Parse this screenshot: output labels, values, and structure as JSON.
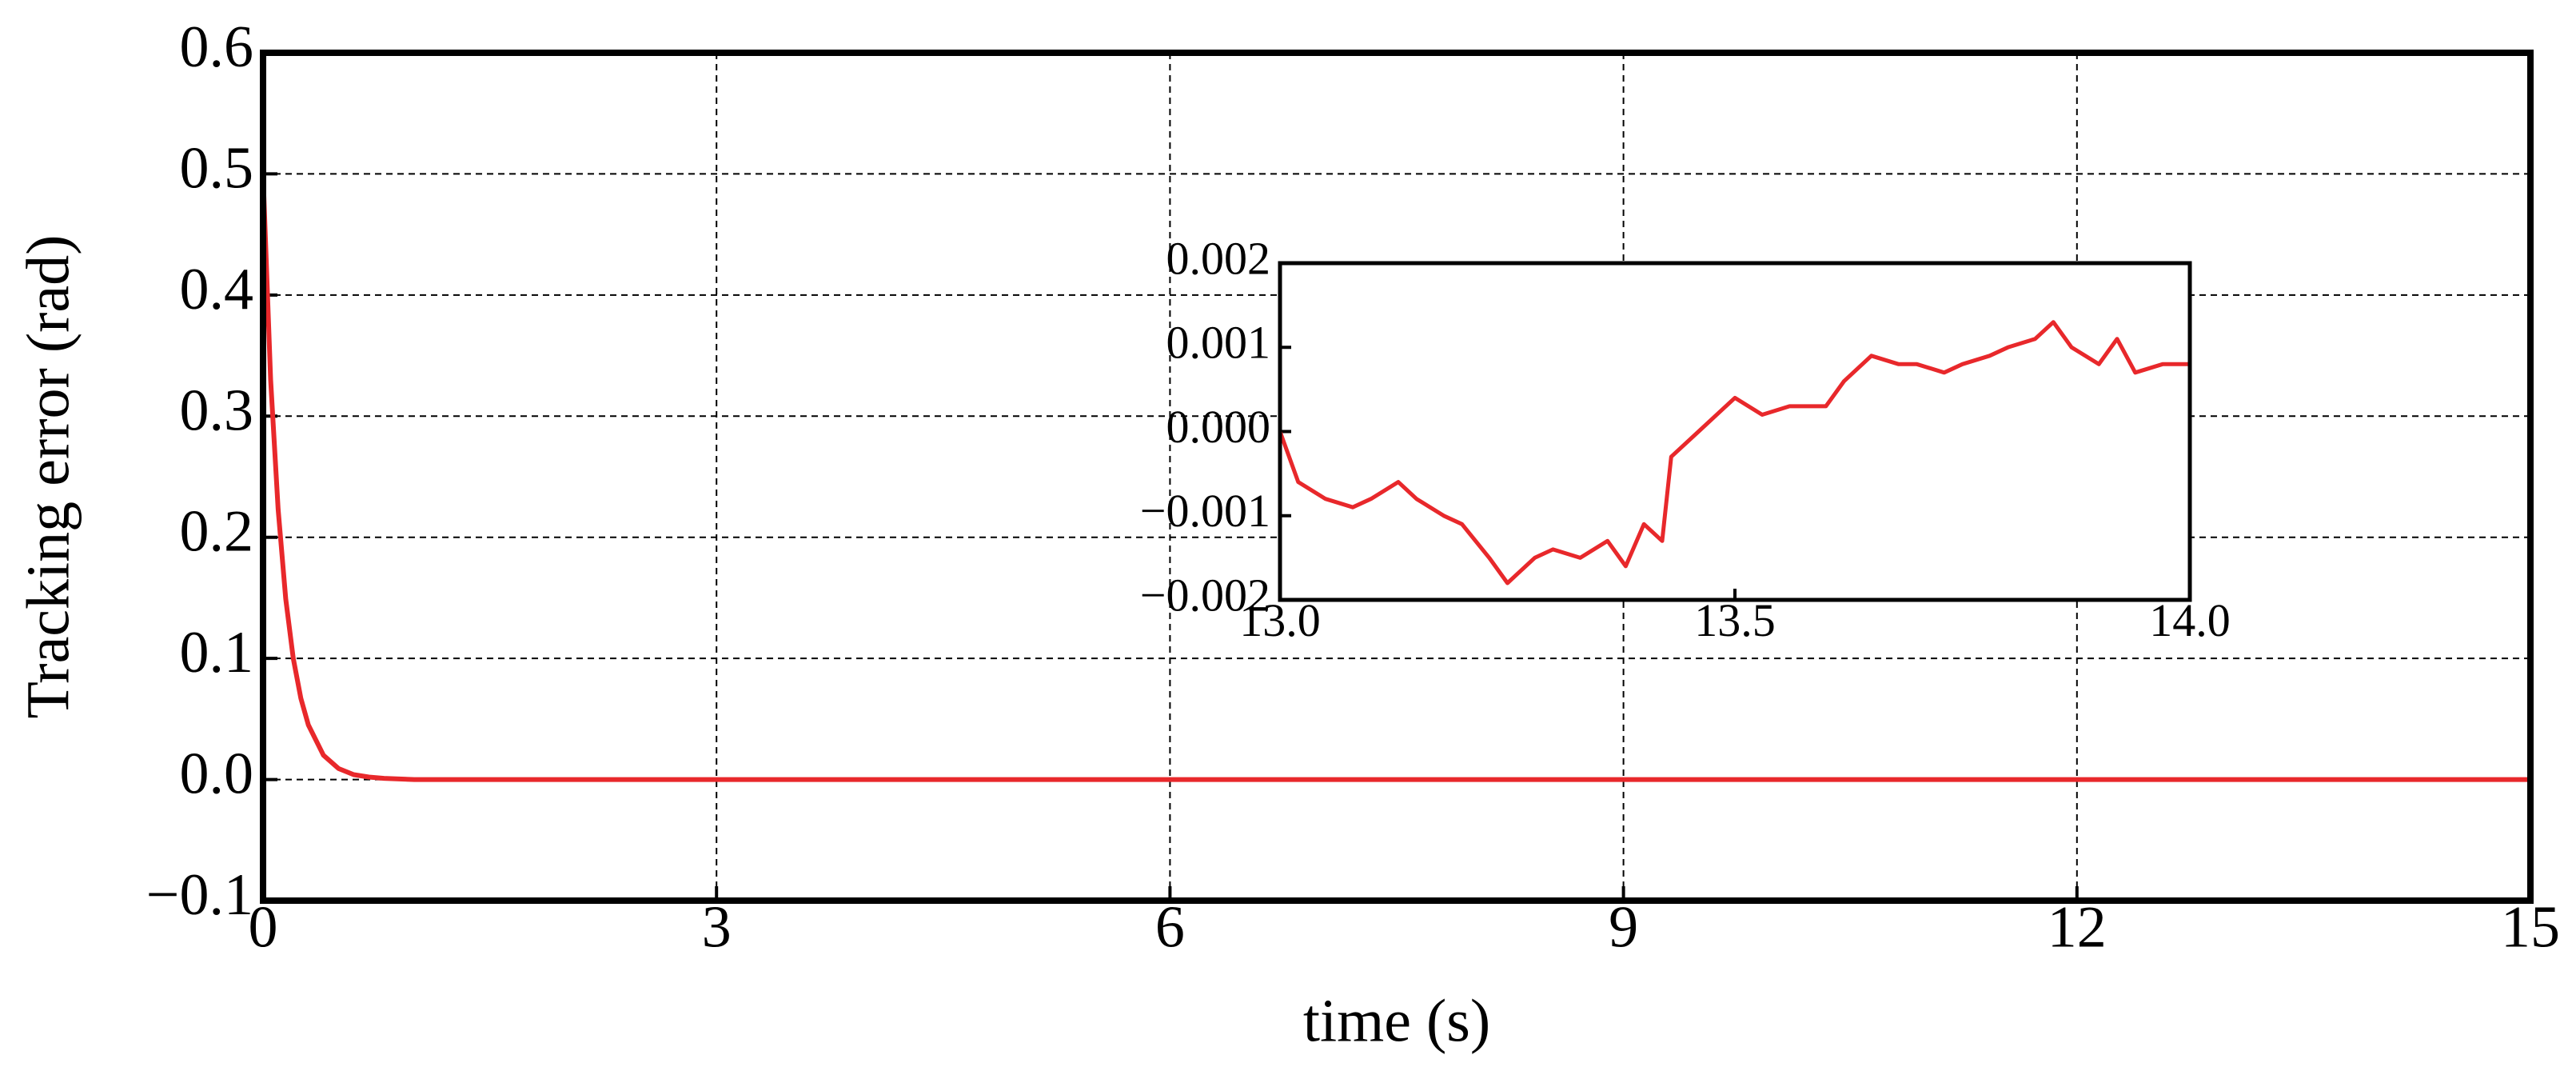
{
  "chart_data": [
    {
      "type": "line",
      "xlabel": "time (s)",
      "ylabel": "Tracking error (rad)",
      "x": [
        0,
        0.05,
        0.1,
        0.15,
        0.2,
        0.25,
        0.3,
        0.4,
        0.5,
        0.6,
        0.7,
        0.8,
        1,
        2,
        3,
        4,
        5,
        6,
        7,
        8,
        9,
        10,
        11,
        12,
        13,
        14,
        15
      ],
      "values": [
        0.5,
        0.33,
        0.223,
        0.149,
        0.1,
        0.067,
        0.045,
        0.02,
        0.009,
        0.004,
        0.002,
        0.001,
        0,
        0,
        0,
        0,
        0,
        0,
        0,
        0,
        0,
        0,
        0,
        0,
        0,
        0,
        0
      ],
      "color": "#e8282b",
      "xlim": [
        0,
        15
      ],
      "xticks": [
        0,
        3,
        6,
        9,
        12,
        15
      ],
      "ylim": [
        -0.1,
        0.6
      ],
      "yticks": [
        {
          "value": -0.1,
          "label": "−0.1"
        },
        {
          "value": 0,
          "label": "0.0"
        },
        0.1,
        0.2,
        0.3,
        0.4,
        0.5,
        0.6
      ],
      "grid": true
    },
    {
      "type": "line",
      "x": [
        13.0,
        13.02,
        13.05,
        13.08,
        13.1,
        13.13,
        13.15,
        13.18,
        13.2,
        13.23,
        13.25,
        13.28,
        13.3,
        13.33,
        13.36,
        13.38,
        13.4,
        13.42,
        13.43,
        13.46,
        13.5,
        13.53,
        13.56,
        13.6,
        13.62,
        13.65,
        13.68,
        13.7,
        13.73,
        13.75,
        13.78,
        13.8,
        13.83,
        13.85,
        13.87,
        13.9,
        13.92,
        13.94,
        13.97,
        14.0
      ],
      "values": [
        0.0,
        -0.0006,
        -0.0008,
        -0.0009,
        -0.0008,
        -0.0006,
        -0.0008,
        -0.001,
        -0.0011,
        -0.0015,
        -0.0018,
        -0.0015,
        -0.0014,
        -0.0015,
        -0.0013,
        -0.0016,
        -0.0011,
        -0.0013,
        -0.0003,
        0.0,
        0.0004,
        0.0002,
        0.0003,
        0.0003,
        0.0006,
        0.0009,
        0.0008,
        0.0008,
        0.0007,
        0.0008,
        0.0009,
        0.001,
        0.0011,
        0.0013,
        0.001,
        0.0008,
        0.0011,
        0.0007,
        0.0008,
        0.0008
      ],
      "color": "#e8282b",
      "xlim": [
        13,
        14
      ],
      "xticks": [
        {
          "value": 13,
          "label": "13.0"
        },
        {
          "value": 13.5,
          "label": "13.5"
        },
        {
          "value": 14,
          "label": "14.0"
        }
      ],
      "ylim": [
        -0.002,
        0.002
      ],
      "yticks": [
        {
          "value": -0.002,
          "label": "−0.002"
        },
        {
          "value": -0.001,
          "label": "−0.001"
        },
        {
          "value": 0,
          "label": "0.000"
        },
        {
          "value": 0.001,
          "label": "0.001"
        },
        {
          "value": 0.002,
          "label": "0.002"
        }
      ],
      "grid": false
    }
  ]
}
